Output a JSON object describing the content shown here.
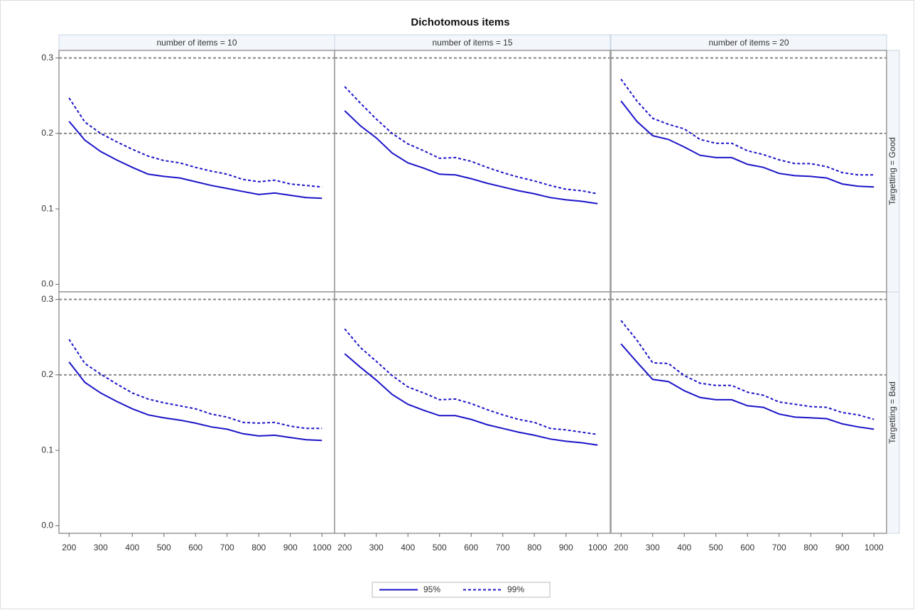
{
  "chart_data": {
    "type": "line",
    "title": "Dichotomous items",
    "columns": [
      "number of items = 10",
      "number of items = 15",
      "number of items = 20"
    ],
    "rows": [
      "Targetting = Good",
      "Targetting = Bad"
    ],
    "x": [
      200,
      250,
      300,
      350,
      400,
      450,
      500,
      550,
      600,
      650,
      700,
      750,
      800,
      850,
      900,
      950,
      1000
    ],
    "xlim": [
      168,
      1040
    ],
    "xticks": [
      200,
      300,
      400,
      500,
      600,
      700,
      800,
      900,
      1000
    ],
    "ylim": [
      -0.01,
      0.31
    ],
    "yticks": [
      {
        "value": 0,
        "label": "0.0"
      },
      0.1,
      0.2,
      0.3
    ],
    "reference_lines": [
      0.2,
      0.3
    ],
    "series": [
      {
        "name": "95%",
        "color": "#1c14c8",
        "line_style": "solid"
      },
      {
        "name": "99%",
        "color": "#1c14c8",
        "line_style": "dashed"
      }
    ],
    "panels": [
      {
        "series": [
          {
            "values": [
              0.216,
              0.191,
              0.176,
              0.165,
              0.155,
              0.146,
              0.143,
              0.141,
              0.136,
              0.131,
              0.127,
              0.123,
              0.119,
              0.121,
              0.118,
              0.115,
              0.114
            ]
          },
          {
            "values": [
              0.247,
              0.215,
              0.2,
              0.189,
              0.179,
              0.17,
              0.164,
              0.161,
              0.155,
              0.15,
              0.146,
              0.139,
              0.136,
              0.138,
              0.133,
              0.131,
              0.129
            ]
          }
        ]
      },
      {
        "series": [
          {
            "values": [
              0.23,
              0.21,
              0.194,
              0.174,
              0.161,
              0.154,
              0.146,
              0.145,
              0.14,
              0.134,
              0.129,
              0.124,
              0.12,
              0.115,
              0.112,
              0.11,
              0.107
            ]
          },
          {
            "values": [
              0.262,
              0.24,
              0.219,
              0.2,
              0.186,
              0.177,
              0.167,
              0.168,
              0.163,
              0.155,
              0.148,
              0.142,
              0.137,
              0.131,
              0.126,
              0.124,
              0.12
            ]
          }
        ]
      },
      {
        "series": [
          {
            "values": [
              0.243,
              0.216,
              0.197,
              0.192,
              0.182,
              0.171,
              0.168,
              0.168,
              0.159,
              0.155,
              0.147,
              0.144,
              0.143,
              0.141,
              0.133,
              0.13,
              0.129
            ]
          },
          {
            "values": [
              0.272,
              0.243,
              0.22,
              0.212,
              0.206,
              0.192,
              0.187,
              0.187,
              0.177,
              0.172,
              0.165,
              0.16,
              0.16,
              0.156,
              0.148,
              0.145,
              0.145
            ]
          }
        ]
      },
      {
        "series": [
          {
            "values": [
              0.217,
              0.19,
              0.176,
              0.165,
              0.155,
              0.147,
              0.143,
              0.14,
              0.136,
              0.131,
              0.128,
              0.122,
              0.119,
              0.12,
              0.117,
              0.114,
              0.113
            ]
          },
          {
            "values": [
              0.247,
              0.215,
              0.201,
              0.188,
              0.176,
              0.168,
              0.163,
              0.159,
              0.155,
              0.148,
              0.144,
              0.137,
              0.136,
              0.137,
              0.132,
              0.129,
              0.129
            ]
          }
        ]
      },
      {
        "series": [
          {
            "values": [
              0.228,
              0.21,
              0.193,
              0.174,
              0.161,
              0.153,
              0.146,
              0.146,
              0.141,
              0.134,
              0.129,
              0.124,
              0.12,
              0.115,
              0.112,
              0.11,
              0.107
            ]
          },
          {
            "values": [
              0.261,
              0.236,
              0.218,
              0.199,
              0.184,
              0.176,
              0.167,
              0.168,
              0.162,
              0.154,
              0.147,
              0.141,
              0.137,
              0.129,
              0.127,
              0.124,
              0.121
            ]
          }
        ]
      },
      {
        "series": [
          {
            "values": [
              0.241,
              0.217,
              0.194,
              0.191,
              0.179,
              0.17,
              0.167,
              0.167,
              0.159,
              0.157,
              0.148,
              0.144,
              0.143,
              0.142,
              0.135,
              0.131,
              0.128
            ]
          },
          {
            "values": [
              0.272,
              0.246,
              0.216,
              0.215,
              0.199,
              0.189,
              0.186,
              0.186,
              0.177,
              0.173,
              0.164,
              0.161,
              0.158,
              0.157,
              0.15,
              0.147,
              0.141
            ]
          }
        ]
      }
    ]
  }
}
